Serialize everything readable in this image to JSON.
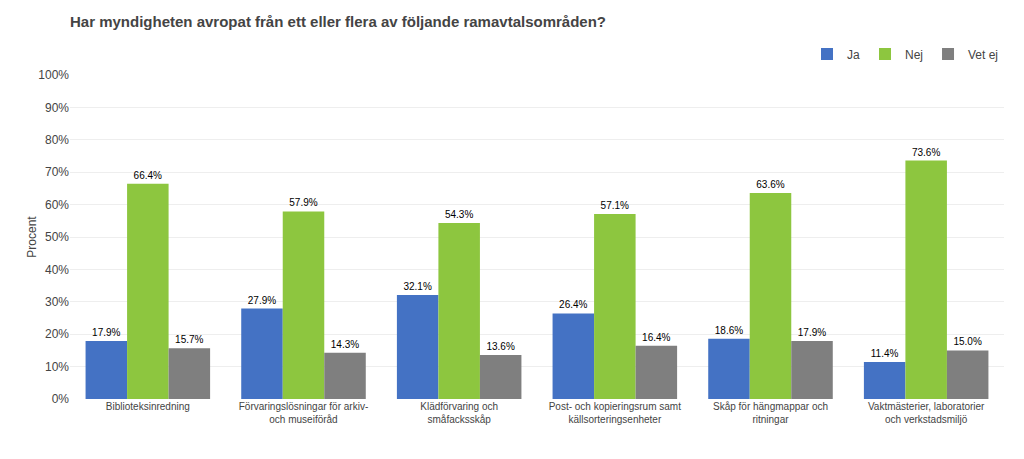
{
  "chart_data": {
    "type": "bar",
    "title": "Har myndigheten avropat från ett eller flera av följande ramavtalsområden?",
    "categories": [
      "Biblioteksinredning",
      "Förvaringslösningar för arkiv-\noch museiföråd",
      "Klädförvaring och\nsmåfacksskåp",
      "Post- och kopieringsrum samt\nkällsorteringsenheter",
      "Skåp för hängmappar och\nritningar",
      "Vaktmästerier, laboratorier\noch verkstadsmiljö"
    ],
    "series": [
      {
        "name": "Ja",
        "color": "#4472c4",
        "values": [
          17.9,
          27.9,
          32.1,
          26.4,
          18.6,
          11.4
        ],
        "value_labels": [
          "17.9%",
          "27.9%",
          "32.1%",
          "26.4%",
          "18.6%",
          "11.4%"
        ]
      },
      {
        "name": "Nej",
        "color": "#8dc63f",
        "values": [
          66.4,
          57.9,
          54.3,
          57.1,
          63.6,
          73.6
        ],
        "value_labels": [
          "66.4%",
          "57.9%",
          "54.3%",
          "57.1%",
          "63.6%",
          "73.6%"
        ]
      },
      {
        "name": "Vet ej",
        "color": "#7f7f7f",
        "values": [
          15.7,
          14.3,
          13.6,
          16.4,
          17.9,
          15.0
        ],
        "value_labels": [
          "15.7%",
          "14.3%",
          "13.6%",
          "16.4%",
          "17.9%",
          "15.0%"
        ]
      }
    ],
    "ylabel": "Procent",
    "ylim": [
      0,
      100
    ],
    "yticks": [
      {
        "value": 0,
        "label": "0%"
      },
      {
        "value": 10,
        "label": "10%"
      },
      {
        "value": 20,
        "label": "20%"
      },
      {
        "value": 30,
        "label": "30%"
      },
      {
        "value": 40,
        "label": "40%"
      },
      {
        "value": 50,
        "label": "50%"
      },
      {
        "value": 60,
        "label": "60%"
      },
      {
        "value": 70,
        "label": "70%"
      },
      {
        "value": 80,
        "label": "80%"
      },
      {
        "value": 90,
        "label": "90%"
      },
      {
        "value": 100,
        "label": "100%"
      }
    ],
    "grid": true,
    "legend": "top",
    "data_labels": true
  }
}
